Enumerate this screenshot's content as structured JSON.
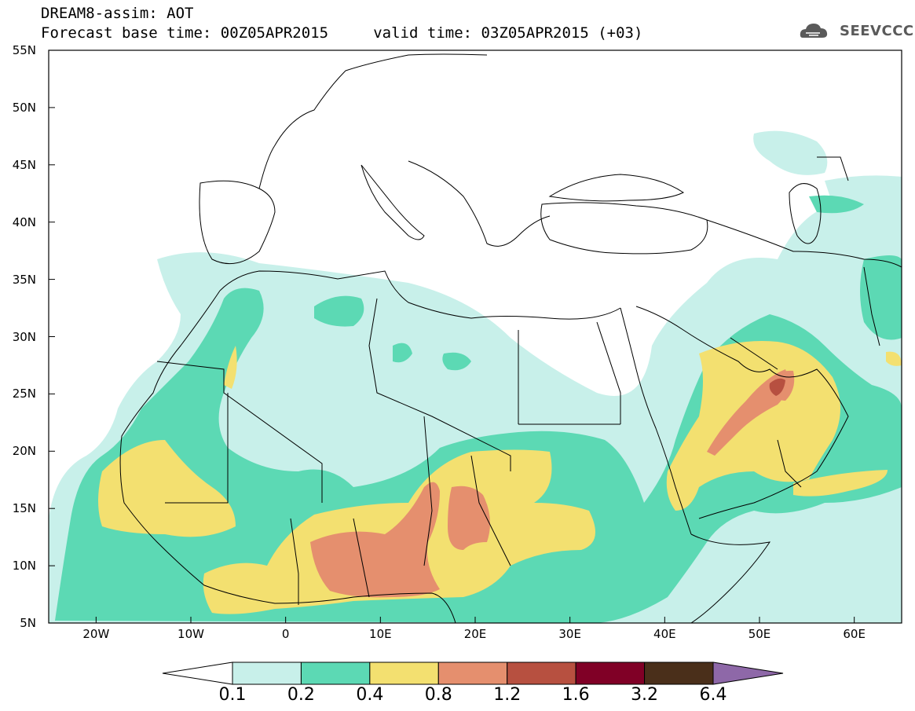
{
  "header": {
    "title_line1": "DREAM8-assim: AOT",
    "title_line2": "Forecast base time: 00Z05APR2015     valid time: 03Z05APR2015 (+03)",
    "logo_text": "SEEVCCC",
    "logo_icon": "cloud-icon"
  },
  "map": {
    "lat_labels": [
      "55N",
      "50N",
      "45N",
      "40N",
      "35N",
      "30N",
      "25N",
      "20N",
      "15N",
      "10N",
      "5N"
    ],
    "lon_labels": [
      "20W",
      "10W",
      "0",
      "10E",
      "20E",
      "30E",
      "40E",
      "50E",
      "60E"
    ],
    "extent": {
      "lon": [
        -25,
        65
      ],
      "lat": [
        5,
        55
      ]
    },
    "colors": {
      "c1": "#c8f0ea",
      "c2": "#5cd9b4",
      "c3": "#f3e070",
      "c4": "#e58f6e",
      "c5": "#b75040",
      "c6": "#800026",
      "c7": "#4a2f1a",
      "c8": "#8e68a8"
    }
  },
  "colorbar": {
    "labels": [
      "0.1",
      "0.2",
      "0.4",
      "0.8",
      "1.2",
      "1.6",
      "3.2",
      "6.4"
    ],
    "colors": [
      "#ffffff",
      "#c8f0ea",
      "#5cd9b4",
      "#f3e070",
      "#e58f6e",
      "#b75040",
      "#800026",
      "#4a2f1a",
      "#8e68a8"
    ]
  }
}
